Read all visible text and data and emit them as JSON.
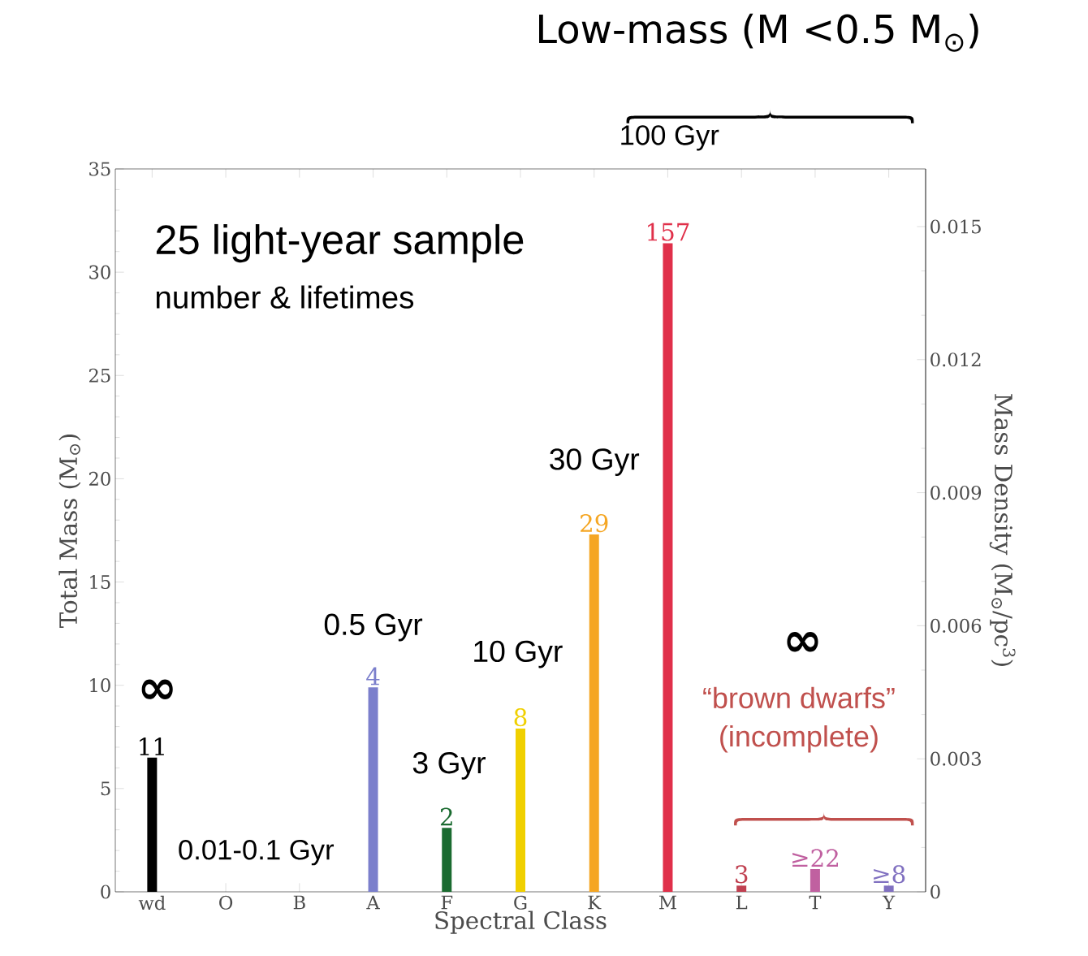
{
  "chart_data": {
    "type": "bar",
    "categories": [
      "wd",
      "O",
      "B",
      "A",
      "F",
      "G",
      "K",
      "M",
      "L",
      "T",
      "Y"
    ],
    "values": [
      6.5,
      0,
      0,
      9.9,
      3.1,
      7.9,
      17.3,
      31.4,
      0.3,
      1.1,
      0.3
    ],
    "colors": [
      "#000000",
      "#000000",
      "#000000",
      "#7b7fcc",
      "#1a6b30",
      "#f0d000",
      "#f5a623",
      "#e0304a",
      "#c04050",
      "#c060a0",
      "#8070c0"
    ],
    "xlabel": "Spectral Class",
    "ylabel": "Total Mass (M$_{⊙}$)",
    "y2label": "Mass Density (M$_{⊙}$/pc$^{3}$)",
    "ylim": [
      0,
      35
    ],
    "yticks": [
      0,
      5,
      10,
      15,
      20,
      25,
      30,
      35
    ],
    "y2lim": [
      0,
      0.0163
    ],
    "y2ticks": [
      0,
      0.003,
      0.006,
      0.009,
      0.012,
      0.015
    ],
    "annotations": [
      "Low-mass (M <0.5 M$_{⊙}$)",
      "100 Gyr",
      "25 light-year sample",
      "number & lifetimes",
      "30 Gyr",
      "10 Gyr",
      "0.5 Gyr",
      "3 Gyr",
      "0.01-0.1 Gyr",
      "∞",
      "∞",
      "“brown dwarfs”",
      "(incomplete)",
      {
        "text": "11",
        "x": "wd",
        "y": 6.5
      },
      {
        "text": "4",
        "x": "A",
        "y": 9.9
      },
      {
        "text": "2",
        "x": "F",
        "y": 3.1
      },
      {
        "text": "8",
        "x": "G",
        "y": 7.9
      },
      {
        "text": "29",
        "x": "K",
        "y": 17.3
      },
      {
        "text": "157",
        "x": "M",
        "y": 31.4
      },
      {
        "text": "3",
        "x": "L",
        "y": 0.3
      },
      {
        "text": "≥22",
        "x": "T",
        "y": 1.1
      },
      {
        "text": "≥8",
        "x": "Y",
        "y": 0.3
      }
    ],
    "grid": false,
    "legend": false
  }
}
